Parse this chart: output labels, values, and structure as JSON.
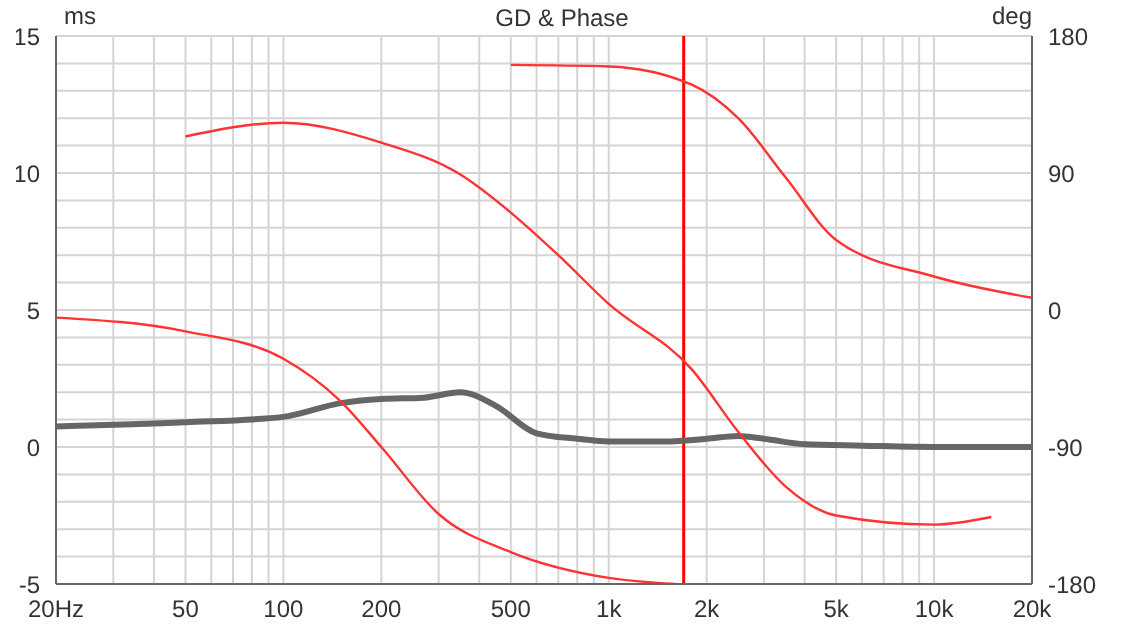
{
  "chart_data": {
    "type": "line",
    "title": "GD & Phase",
    "ylabel": "ms",
    "y2label": "deg",
    "log": "x",
    "grid": true,
    "marker": "none",
    "line_style": "solid",
    "xlim": [
      20,
      20000
    ],
    "xticks": [
      {
        "value": 20,
        "label": "20Hz"
      },
      {
        "value": 30,
        "label": null
      },
      {
        "value": 40,
        "label": null
      },
      50,
      {
        "value": 60,
        "label": null
      },
      {
        "value": 70,
        "label": null
      },
      {
        "value": 80,
        "label": null
      },
      {
        "value": 90,
        "label": null
      },
      100,
      200,
      {
        "value": 300,
        "label": null
      },
      {
        "value": 400,
        "label": null
      },
      500,
      {
        "value": 600,
        "label": null
      },
      {
        "value": 700,
        "label": null
      },
      {
        "value": 800,
        "label": null
      },
      {
        "value": 900,
        "label": null
      },
      {
        "value": 1000,
        "label": "1k"
      },
      {
        "value": 2000,
        "label": "2k"
      },
      {
        "value": 3000,
        "label": null
      },
      {
        "value": 4000,
        "label": null
      },
      {
        "value": 5000,
        "label": "5k"
      },
      {
        "value": 6000,
        "label": null
      },
      {
        "value": 7000,
        "label": null
      },
      {
        "value": 8000,
        "label": null
      },
      {
        "value": 9000,
        "label": null
      },
      {
        "value": 10000,
        "label": "10k"
      },
      {
        "value": 20000,
        "label": "20k"
      }
    ],
    "ylim": [
      -5,
      15
    ],
    "yticks": [
      -5,
      {
        "value": -4,
        "label": null
      },
      {
        "value": -3,
        "label": null
      },
      {
        "value": -2,
        "label": null
      },
      {
        "value": -1,
        "label": null
      },
      0,
      {
        "value": 1,
        "label": null
      },
      {
        "value": 2,
        "label": null
      },
      {
        "value": 3,
        "label": null
      },
      {
        "value": 4,
        "label": null
      },
      5,
      {
        "value": 6,
        "label": null
      },
      {
        "value": 7,
        "label": null
      },
      {
        "value": 8,
        "label": null
      },
      {
        "value": 9,
        "label": null
      },
      10,
      {
        "value": 11,
        "label": null
      },
      {
        "value": 12,
        "label": null
      },
      {
        "value": 13,
        "label": null
      },
      {
        "value": 14,
        "label": null
      },
      15
    ],
    "y2lim": [
      -180,
      180
    ],
    "y2ticks": [
      -180,
      -90,
      0,
      90,
      180
    ],
    "ref_lines": [
      {
        "axis": "x",
        "value": 1700,
        "color": "#ff0000"
      }
    ],
    "series": [
      {
        "color": "#666666",
        "x": [
          20,
          50,
          100,
          150,
          200,
          270,
          350,
          450,
          600,
          800,
          1000,
          1500,
          2000,
          2500,
          3000,
          4000,
          6000,
          10000,
          20000
        ],
        "values": [
          0.75,
          0.9,
          1.1,
          1.6,
          1.75,
          1.8,
          2.0,
          1.5,
          0.5,
          0.3,
          0.2,
          0.2,
          0.3,
          0.4,
          0.3,
          0.1,
          0.05,
          0,
          0
        ]
      },
      {
        "color": "#ff3333",
        "axis": "y2",
        "x": [
          20,
          50,
          100,
          150,
          200,
          300,
          500,
          1000,
          1600
        ],
        "values": [
          -5,
          -14,
          -32,
          -60,
          -90,
          -134,
          -159,
          -176,
          -180
        ]
      },
      {
        "color": "#ff3333",
        "axis": "y2",
        "x": [
          50,
          100,
          200,
          350,
          500,
          700,
          1000,
          1800,
          2500,
          3500,
          5000,
          10000,
          15000
        ],
        "values": [
          114,
          123,
          110,
          89,
          64,
          36,
          4,
          -39,
          -80,
          -116,
          -135,
          -141,
          -136
        ]
      },
      {
        "color": "#ff3333",
        "axis": "y2",
        "x": [
          500,
          1000,
          1800,
          2500,
          3500,
          5000,
          10000,
          20000
        ],
        "values": [
          161,
          160,
          148,
          126,
          87,
          46,
          22,
          8
        ]
      }
    ]
  }
}
